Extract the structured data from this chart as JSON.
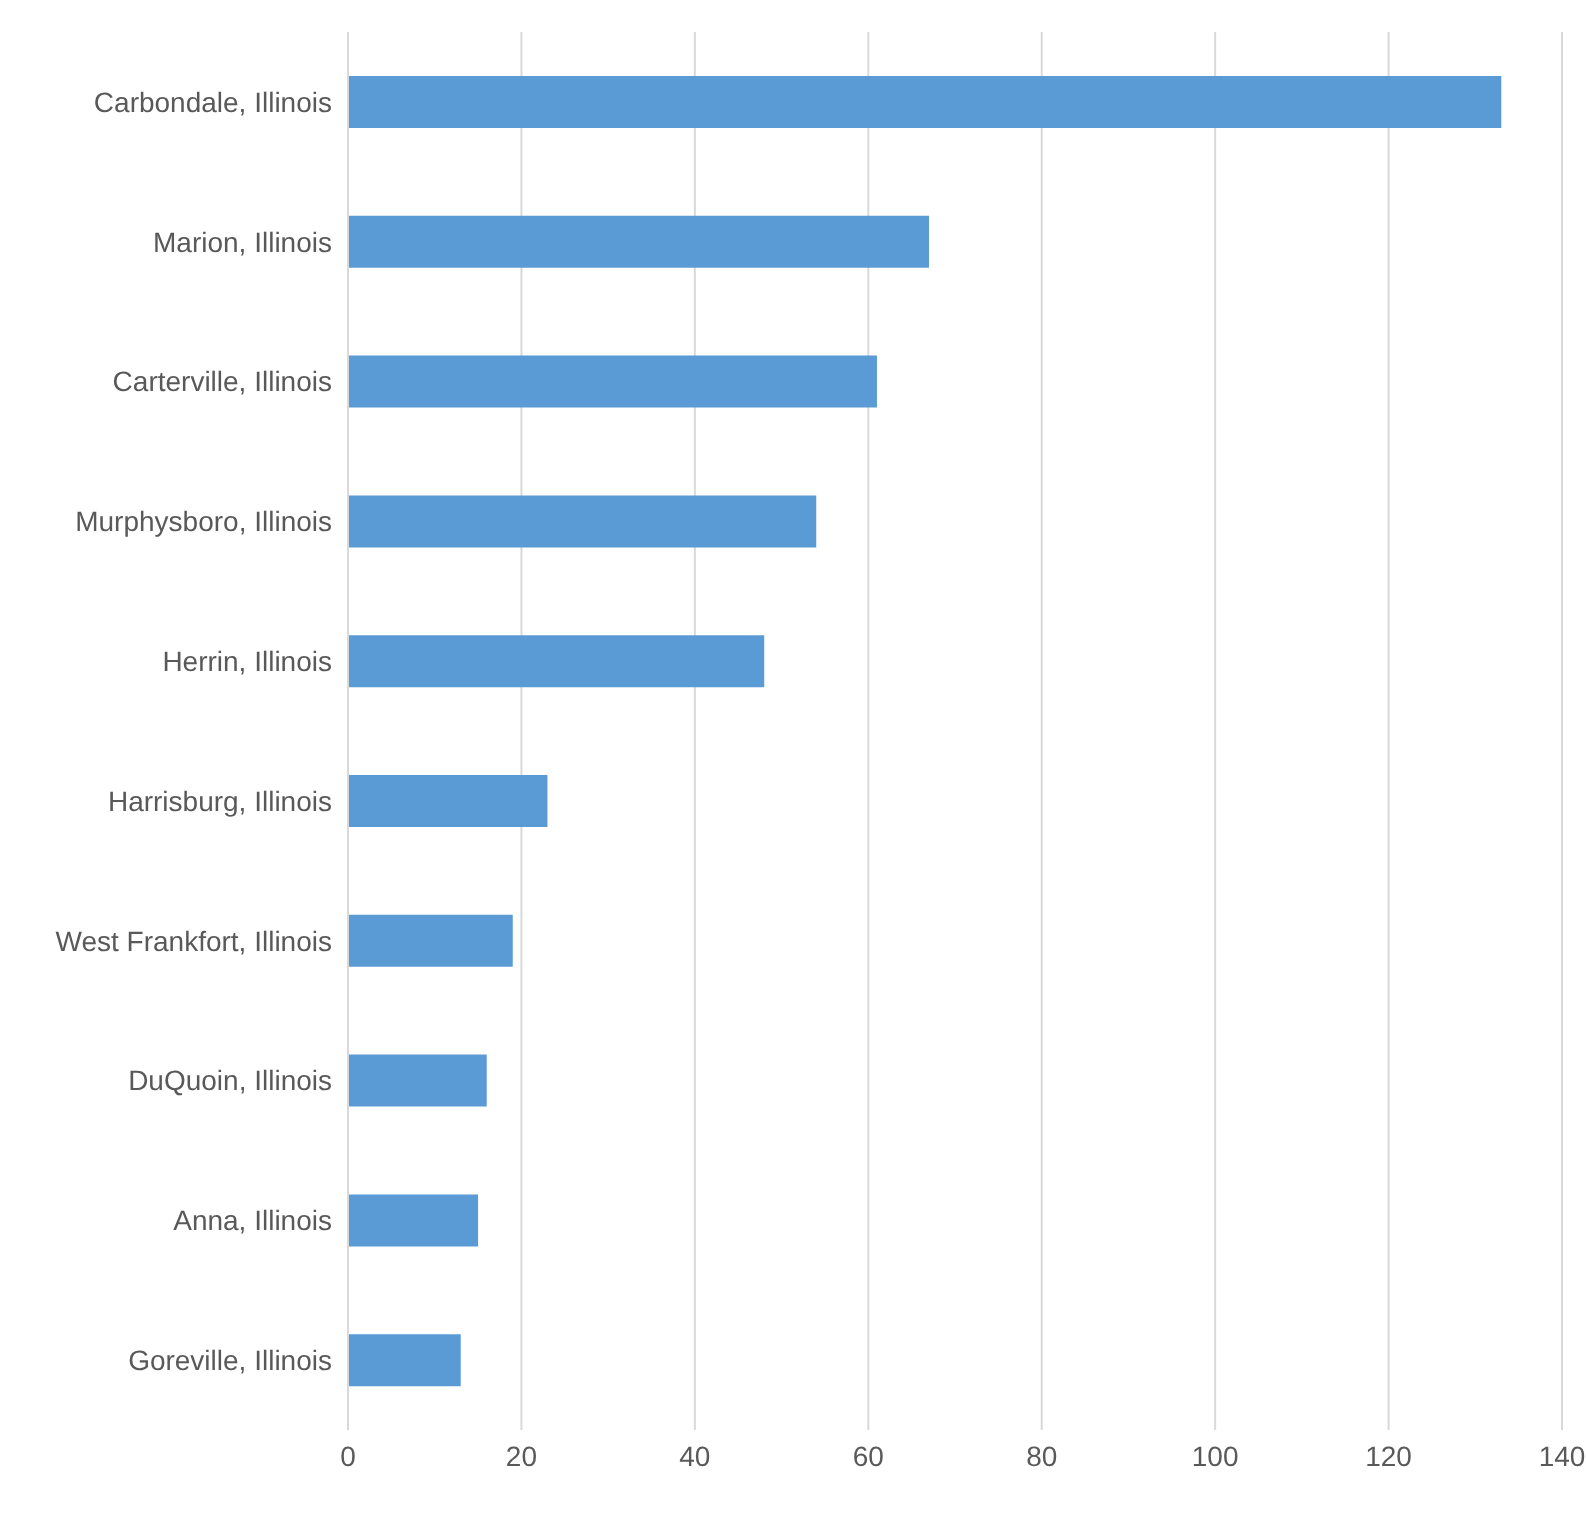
{
  "chart_data": {
    "type": "bar",
    "orientation": "horizontal",
    "categories": [
      "Carbondale, Illinois",
      "Marion, Illinois",
      "Carterville, Illinois",
      "Murphysboro, Illinois",
      "Herrin, Illinois",
      "Harrisburg, Illinois",
      "West Frankfort, Illinois",
      "DuQuoin, Illinois",
      "Anna, Illinois",
      "Goreville, Illinois"
    ],
    "values": [
      133,
      67,
      61,
      54,
      48,
      23,
      19,
      16,
      15,
      13
    ],
    "color": "#5b9bd5",
    "xlim": [
      0,
      140
    ],
    "xticks": [
      0,
      20,
      40,
      60,
      80,
      100,
      120,
      140
    ],
    "grid": "x",
    "legend": false
  }
}
